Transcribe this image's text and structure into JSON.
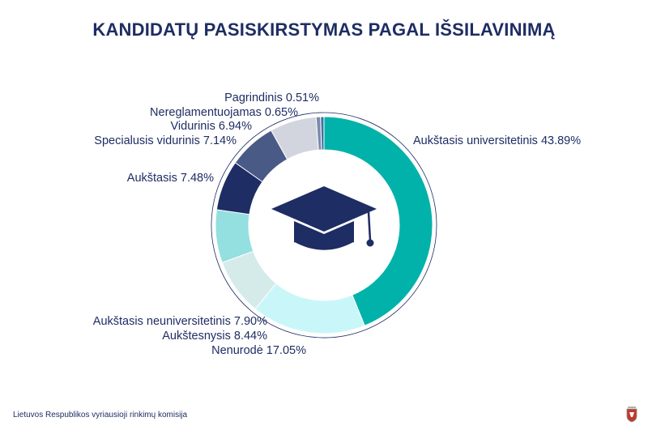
{
  "title": "KANDIDATŲ PASISKIRSTYMAS PAGAL IŠSILAVINIMĄ",
  "footer": "Lietuvos Respublikos vyriausioji rinkimų komisija",
  "icon": "graduation-cap-icon",
  "logo": "coat-of-arms-logo",
  "chart_data": {
    "type": "pie",
    "donut": true,
    "title": "KANDIDATŲ PASISKIRSTYMAS PAGAL IŠSILAVINIMĄ",
    "legend": "none",
    "slices": [
      {
        "name": "Aukštasis universitetinis",
        "value": 43.89,
        "label": "Aukštasis universitetinis 43.89%",
        "color": "#00b2a9"
      },
      {
        "name": "Nenurodė",
        "value": 17.05,
        "label": "Nenurodė 17.05%",
        "color": "#c9f7f9"
      },
      {
        "name": "Aukštesnysis",
        "value": 8.44,
        "label": "Aukštesnysis 8.44%",
        "color": "#d4ebea"
      },
      {
        "name": "Aukštasis neuniversitetinis",
        "value": 7.9,
        "label": "Aukštasis neuniversitetinis 7.90%",
        "color": "#94dfe0"
      },
      {
        "name": "Aukštasis",
        "value": 7.48,
        "label": "Aukštasis 7.48%",
        "color": "#1e2d63"
      },
      {
        "name": "Specialusis vidurinis",
        "value": 7.14,
        "label": "Specialusis vidurinis 7.14%",
        "color": "#4a5a86"
      },
      {
        "name": "Vidurinis",
        "value": 6.94,
        "label": "Vidurinis 6.94%",
        "color": "#d2d5de"
      },
      {
        "name": "Nereglamentuojamas",
        "value": 0.65,
        "label": "Nereglamentuojamas 0.65%",
        "color": "#7b8aa9"
      },
      {
        "name": "Pagrindinis",
        "value": 0.51,
        "label": "Pagrindinis 0.51%",
        "color": "#3d74a6"
      }
    ]
  }
}
